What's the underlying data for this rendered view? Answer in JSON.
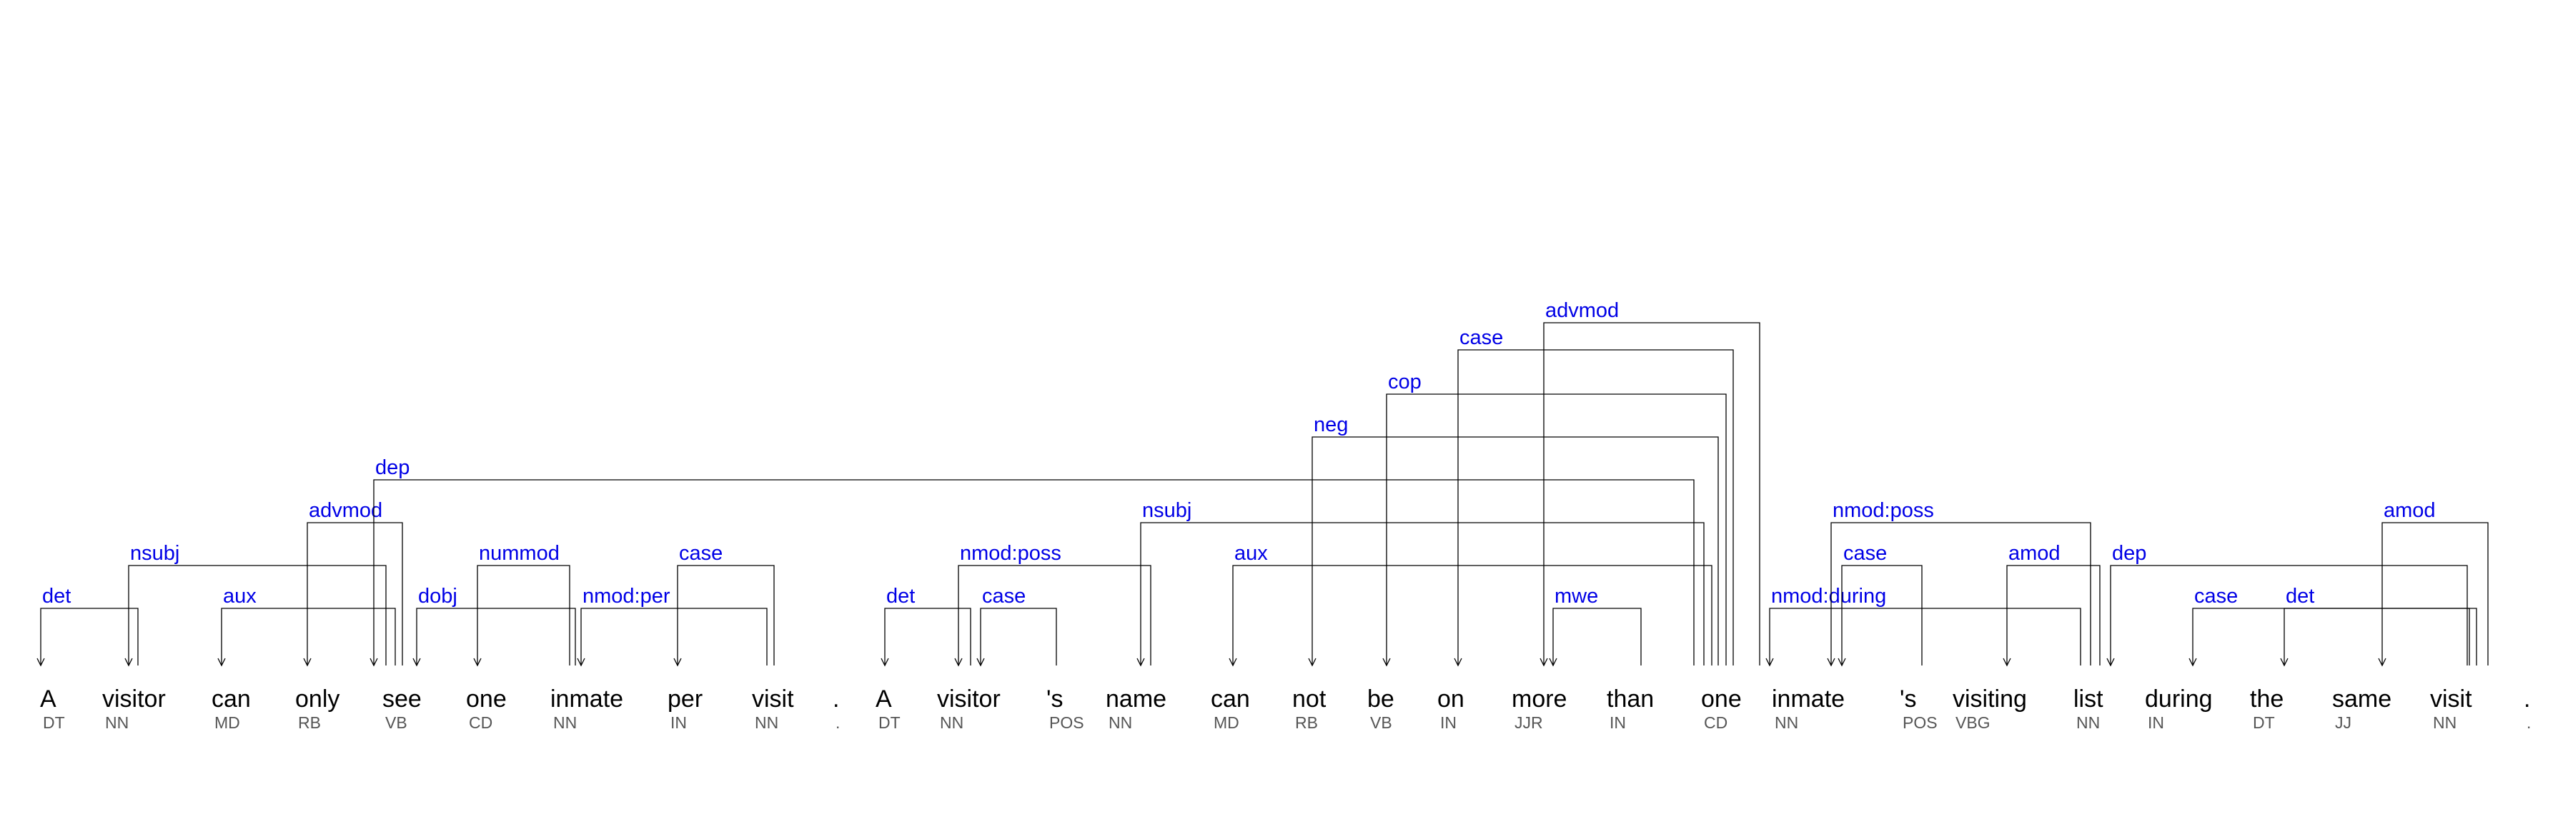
{
  "colors": {
    "label": "#0000e6",
    "line": "#000000",
    "word": "#000000",
    "tag": "#555555"
  },
  "tokens": [
    {
      "word": "A",
      "tag": "DT"
    },
    {
      "word": "visitor",
      "tag": "NN"
    },
    {
      "word": "can",
      "tag": "MD"
    },
    {
      "word": "only",
      "tag": "RB"
    },
    {
      "word": "see",
      "tag": "VB"
    },
    {
      "word": "one",
      "tag": "CD"
    },
    {
      "word": "inmate",
      "tag": "NN"
    },
    {
      "word": "per",
      "tag": "IN"
    },
    {
      "word": "visit",
      "tag": "NN"
    },
    {
      "word": ".",
      "tag": "."
    },
    {
      "word": "A",
      "tag": "DT"
    },
    {
      "word": "visitor",
      "tag": "NN"
    },
    {
      "word": "'s",
      "tag": "POS"
    },
    {
      "word": "name",
      "tag": "NN"
    },
    {
      "word": "can",
      "tag": "MD"
    },
    {
      "word": "not",
      "tag": "RB"
    },
    {
      "word": "be",
      "tag": "VB"
    },
    {
      "word": "on",
      "tag": "IN"
    },
    {
      "word": "more",
      "tag": "JJR"
    },
    {
      "word": "than",
      "tag": "IN"
    },
    {
      "word": "one",
      "tag": "CD"
    },
    {
      "word": "inmate",
      "tag": "NN"
    },
    {
      "word": "'s",
      "tag": "POS"
    },
    {
      "word": "visiting",
      "tag": "VBG"
    },
    {
      "word": "list",
      "tag": "NN"
    },
    {
      "word": "during",
      "tag": "IN"
    },
    {
      "word": "the",
      "tag": "DT"
    },
    {
      "word": "same",
      "tag": "JJ"
    },
    {
      "word": "visit",
      "tag": "NN"
    },
    {
      "word": ".",
      "tag": "."
    }
  ],
  "dependencies": [
    {
      "label": "det",
      "head": 1,
      "dep": 0
    },
    {
      "label": "nsubj",
      "head": 4,
      "dep": 1
    },
    {
      "label": "aux",
      "head": 4,
      "dep": 2
    },
    {
      "label": "advmod",
      "head": 4,
      "dep": 3
    },
    {
      "label": "dobj",
      "head": 6,
      "dep": 4
    },
    {
      "label": "nummod",
      "head": 6,
      "dep": 5
    },
    {
      "label": "nmod:per",
      "head": 8,
      "dep": 6
    },
    {
      "label": "case",
      "head": 8,
      "dep": 7
    },
    {
      "label": "dep",
      "head": 20,
      "dep": 4
    },
    {
      "label": "det",
      "head": 11,
      "dep": 10
    },
    {
      "label": "case",
      "head": 11,
      "dep": 12
    },
    {
      "label": "nmod:poss",
      "head": 13,
      "dep": 11
    },
    {
      "label": "nsubj",
      "head": 20,
      "dep": 13
    },
    {
      "label": "aux",
      "head": 20,
      "dep": 14
    },
    {
      "label": "neg",
      "head": 20,
      "dep": 15
    },
    {
      "label": "cop",
      "head": 20,
      "dep": 16
    },
    {
      "label": "case",
      "head": 20,
      "dep": 17
    },
    {
      "label": "mwe",
      "head": 18,
      "dep": 19
    },
    {
      "label": "advmod",
      "head": 20,
      "dep": 18
    },
    {
      "label": "nmod:during",
      "head": 24,
      "dep": 20
    },
    {
      "label": "case",
      "head": 21,
      "dep": 22
    },
    {
      "label": "nmod:poss",
      "head": 24,
      "dep": 21
    },
    {
      "label": "amod",
      "head": 24,
      "dep": 23
    },
    {
      "label": "dep",
      "head": 28,
      "dep": 24
    },
    {
      "label": "case",
      "head": 28,
      "dep": 25
    },
    {
      "label": "det",
      "head": 28,
      "dep": 26
    },
    {
      "label": "amod",
      "head": 28,
      "dep": 27
    }
  ]
}
